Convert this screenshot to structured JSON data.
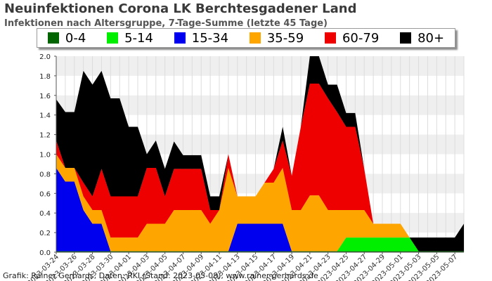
{
  "header": {
    "title": "Neuinfektionen Corona LK Berchtesgadener Land",
    "subtitle": "Infektionen nach Altersgruppe, 7-Tage-Summe (letzte 45 Tage)"
  },
  "legend": [
    {
      "label": "0-4",
      "color": "#006400"
    },
    {
      "label": "5-14",
      "color": "#00ee00"
    },
    {
      "label": "15-34",
      "color": "#0000ee"
    },
    {
      "label": "35-59",
      "color": "#ffa500"
    },
    {
      "label": "60-79",
      "color": "#ee0000"
    },
    {
      "label": "80+",
      "color": "#000000"
    }
  ],
  "footer": {
    "credit": "Grafik: Rainer Gerhards, Daten: RKI (Stand: 2023-05-08), www.rainer-gerhards.de"
  },
  "chart_data": {
    "type": "area",
    "stacked": true,
    "x": [
      "2023-03-24",
      "2023-03-25",
      "2023-03-26",
      "2023-03-27",
      "2023-03-28",
      "2023-03-29",
      "2023-03-30",
      "2023-03-31",
      "2023-04-01",
      "2023-04-02",
      "2023-04-03",
      "2023-04-04",
      "2023-04-05",
      "2023-04-06",
      "2023-04-07",
      "2023-04-08",
      "2023-04-09",
      "2023-04-10",
      "2023-04-11",
      "2023-04-12",
      "2023-04-13",
      "2023-04-14",
      "2023-04-15",
      "2023-04-16",
      "2023-04-17",
      "2023-04-18",
      "2023-04-19",
      "2023-04-20",
      "2023-04-21",
      "2023-04-22",
      "2023-04-23",
      "2023-04-24",
      "2023-04-25",
      "2023-04-26",
      "2023-04-27",
      "2023-04-28",
      "2023-04-29",
      "2023-04-30",
      "2023-05-01",
      "2023-05-02",
      "2023-05-03",
      "2023-05-04",
      "2023-05-05",
      "2023-05-06",
      "2023-05-07",
      "2023-05-08"
    ],
    "x_tick_labels": [
      "2023-03-24",
      "2023-03-26",
      "2023-03-28",
      "2023-03-30",
      "2023-04-01",
      "2023-04-03",
      "2023-04-05",
      "2023-04-07",
      "2023-04-09",
      "2023-04-11",
      "2023-04-13",
      "2023-04-15",
      "2023-04-17",
      "2023-04-19",
      "2023-04-21",
      "2023-04-23",
      "2023-04-25",
      "2023-04-27",
      "2023-04-29",
      "2023-05-01",
      "2023-05-03",
      "2023-05-05",
      "2023-05-07"
    ],
    "ylim": [
      0,
      2.0
    ],
    "y_ticks": [
      "0.0",
      "0.2",
      "0.4",
      "0.6",
      "0.8",
      "1.0",
      "1.2",
      "1.4",
      "1.6",
      "1.8",
      "2.0"
    ],
    "grid": true,
    "legend_position": "top",
    "series": [
      {
        "name": "0-4",
        "color": "#006400",
        "values": [
          0.01,
          0.01,
          0.01,
          0.01,
          0.01,
          0.01,
          0.01,
          0.01,
          0.01,
          0.01,
          0.01,
          0.01,
          0.01,
          0.01,
          0.01,
          0.01,
          0.01,
          0.01,
          0.01,
          0.01,
          0.01,
          0.01,
          0.01,
          0.01,
          0.01,
          0.01,
          0.01,
          0.01,
          0.01,
          0.01,
          0.01,
          0.01,
          0.01,
          0.01,
          0.01,
          0.01,
          0.01,
          0.01,
          0.01,
          0.01,
          0.01,
          0.01,
          0.01,
          0.01,
          0.01,
          0.01
        ]
      },
      {
        "name": "5-14",
        "color": "#00ee00",
        "values": [
          0,
          0,
          0,
          0,
          0,
          0,
          0,
          0,
          0,
          0,
          0,
          0,
          0,
          0,
          0,
          0,
          0,
          0,
          0,
          0,
          0,
          0,
          0,
          0,
          0,
          0,
          0,
          0,
          0,
          0,
          0,
          0,
          0.14,
          0.14,
          0.14,
          0.14,
          0.14,
          0.14,
          0.14,
          0.14,
          0,
          0,
          0,
          0,
          0,
          0
        ]
      },
      {
        "name": "15-34",
        "color": "#0000ee",
        "values": [
          0.85,
          0.71,
          0.71,
          0.42,
          0.28,
          0.28,
          0,
          0,
          0,
          0,
          0,
          0,
          0,
          0,
          0,
          0,
          0,
          0,
          0,
          0,
          0.28,
          0.28,
          0.28,
          0.28,
          0.28,
          0.28,
          0,
          0,
          0,
          0,
          0,
          0,
          0,
          0,
          0,
          0,
          0,
          0,
          0,
          0,
          0,
          0,
          0,
          0,
          0,
          0
        ]
      },
      {
        "name": "35-59",
        "color": "#ffa500",
        "values": [
          0.14,
          0.14,
          0.14,
          0.14,
          0.14,
          0.14,
          0.14,
          0.14,
          0.14,
          0.14,
          0.28,
          0.28,
          0.28,
          0.42,
          0.42,
          0.42,
          0.42,
          0.28,
          0.42,
          0.85,
          0.28,
          0.28,
          0.28,
          0.42,
          0.42,
          0.57,
          0.42,
          0.42,
          0.57,
          0.57,
          0.42,
          0.42,
          0.28,
          0.28,
          0.28,
          0.14,
          0.14,
          0.14,
          0.14,
          0,
          0,
          0,
          0,
          0,
          0,
          0
        ]
      },
      {
        "name": "60-79",
        "color": "#ee0000",
        "values": [
          0.14,
          0,
          0,
          0.14,
          0.14,
          0.42,
          0.42,
          0.42,
          0.42,
          0.42,
          0.57,
          0.57,
          0.28,
          0.42,
          0.42,
          0.42,
          0.42,
          0.14,
          0,
          0.14,
          0,
          0,
          0,
          0,
          0.14,
          0.28,
          0.35,
          0.85,
          1.14,
          1.14,
          1.14,
          1.0,
          0.85,
          0.85,
          0.42,
          0,
          0,
          0,
          0,
          0,
          0,
          0,
          0,
          0,
          0,
          0
        ]
      },
      {
        "name": "80+",
        "color": "#000000",
        "values": [
          0.42,
          0.57,
          0.57,
          1.14,
          1.14,
          1.0,
          1.0,
          1.0,
          0.71,
          0.71,
          0.14,
          0.28,
          0.28,
          0.28,
          0.14,
          0.14,
          0.14,
          0.14,
          0.14,
          0,
          0,
          0,
          0,
          0,
          0,
          0.14,
          0,
          0,
          0.28,
          0.28,
          0.14,
          0.28,
          0.14,
          0.14,
          0,
          0,
          0,
          0,
          0,
          0,
          0.14,
          0.14,
          0.14,
          0.14,
          0.14,
          0.28
        ]
      }
    ]
  }
}
